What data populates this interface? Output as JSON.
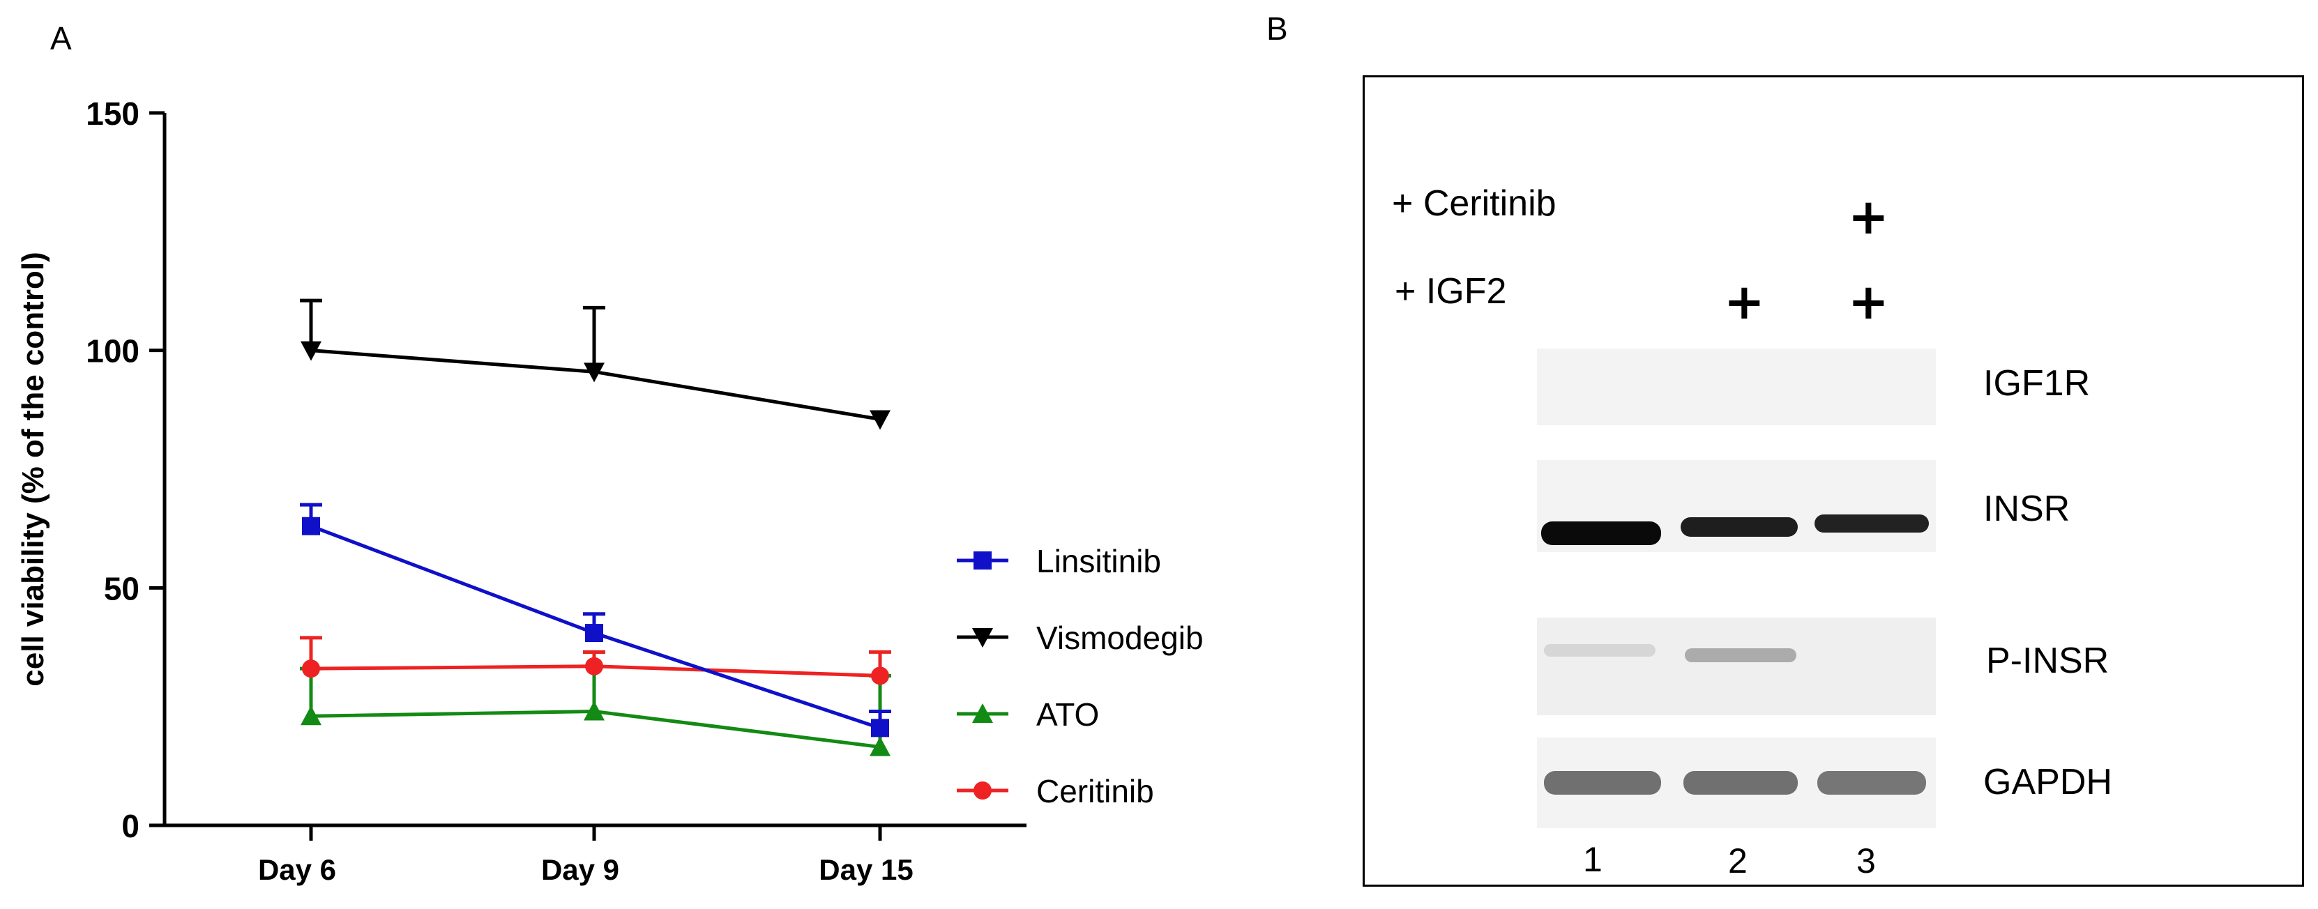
{
  "panels": {
    "a_label": "A",
    "b_label": "B"
  },
  "chart_data": {
    "type": "line",
    "title": "",
    "xlabel": "",
    "ylabel": "cell viability (% of the control)",
    "categories": [
      "Day 6",
      "Day 9",
      "Day 15"
    ],
    "ylim": [
      0,
      150
    ],
    "yticks": [
      0,
      50,
      100,
      150
    ],
    "legend_position": "right",
    "series": [
      {
        "name": "Linsitinib",
        "color": "#1010c8",
        "marker": "square",
        "values": [
          63,
          40.5,
          20.5
        ],
        "errors": [
          4.5,
          4,
          3.5
        ]
      },
      {
        "name": "Vismodegib",
        "color": "#000000",
        "marker": "triangle-down",
        "values": [
          100,
          95.5,
          85.5
        ],
        "errors": [
          10.5,
          13.5,
          0
        ]
      },
      {
        "name": "ATO",
        "color": "#138a13",
        "marker": "triangle-up",
        "values": [
          23,
          24,
          16.5
        ],
        "errors": [
          10,
          12.5,
          15
        ]
      },
      {
        "name": "Ceritinib",
        "color": "#ee2222",
        "marker": "circle",
        "values": [
          33,
          33.5,
          31.5
        ],
        "errors": [
          6.5,
          3,
          5
        ]
      }
    ]
  },
  "blot": {
    "treatments": [
      "+ Ceritinib",
      "+ IGF2"
    ],
    "plus_sign": "+",
    "bands": [
      "IGF1R",
      "INSR",
      "P-INSR",
      "GAPDH"
    ],
    "lanes": [
      "1",
      "2",
      "3"
    ]
  }
}
